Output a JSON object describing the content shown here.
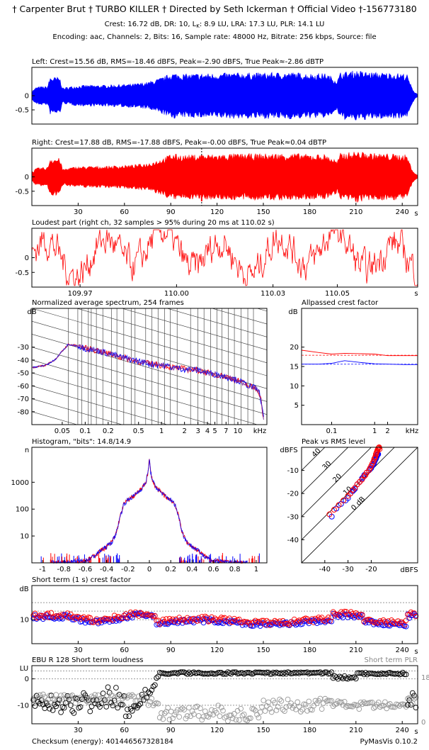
{
  "header": {
    "title": "† Carpenter Brut † TURBO KILLER † Directed by Seth Ickerman † Official Video †-156773180",
    "metrics": "Crest: 16.72 dB,  DR: 10,  L",
    "metrics_k": "K",
    "metrics_rest": ": 8.9 LU,  LRA: 17.3 LU,  PLR: 14.1 LU",
    "encoding": "Encoding: aac,  Channels: 2,  Bits: 16,  Sample rate: 48000 Hz,  Bitrate: 256 kbps,  Source: file"
  },
  "footer": {
    "checksum": "Checksum (energy): 401446567328184",
    "version": "PyMasVis 0.10.2"
  },
  "colors": {
    "left": "#0000ff",
    "right": "#ff0000",
    "spec_mix": "#7a2a9a",
    "grid": "#999999"
  },
  "chart_data": [
    {
      "id": "left",
      "type": "area",
      "title": "Left: Crest=15.56 dB, RMS=-18.46 dBFS, Peak=-2.90 dBFS, True Peak≈-2.86 dBTP",
      "xlim": [
        0,
        250
      ],
      "ylim": [
        -1,
        1
      ],
      "yticks": [
        "0",
        "-0.5"
      ],
      "ytick_values": [
        0,
        -0.5
      ],
      "envelope": {
        "x": [
          0,
          3,
          6,
          10,
          12,
          14,
          18,
          20,
          22,
          25,
          28,
          35,
          45,
          55,
          65,
          75,
          82,
          86,
          90,
          95,
          100,
          110,
          120,
          130,
          140,
          150,
          160,
          170,
          180,
          190,
          195,
          198,
          200,
          205,
          210,
          215,
          220,
          230,
          240,
          243,
          246,
          248,
          250
        ],
        "a": [
          0.15,
          0.28,
          0.3,
          0.3,
          0.62,
          0.6,
          0.6,
          0.25,
          0.27,
          0.3,
          0.32,
          0.34,
          0.34,
          0.36,
          0.38,
          0.44,
          0.55,
          0.62,
          0.74,
          0.72,
          0.7,
          0.72,
          0.72,
          0.74,
          0.74,
          0.74,
          0.75,
          0.75,
          0.72,
          0.72,
          0.6,
          0.5,
          0.76,
          0.78,
          0.82,
          0.78,
          0.76,
          0.74,
          0.72,
          0.7,
          0.3,
          0.12,
          0.05
        ]
      }
    },
    {
      "id": "right",
      "type": "area",
      "title": "Right: Crest=17.88 dB, RMS=-17.88 dBFS, Peak=-0.00 dBFS, True Peak≈0.04 dBTP",
      "xlim": [
        0,
        250
      ],
      "ylim": [
        -1,
        1
      ],
      "yticks": [
        "0",
        "-0.5"
      ],
      "ytick_values": [
        0,
        -0.5
      ],
      "xticks": [
        30,
        60,
        90,
        120,
        150,
        180,
        210,
        240
      ],
      "xunit": "s",
      "marker_x": 110.02,
      "envelope": {
        "x": [
          0,
          3,
          6,
          10,
          12,
          14,
          18,
          20,
          22,
          25,
          28,
          35,
          45,
          55,
          65,
          75,
          82,
          86,
          90,
          95,
          100,
          110,
          120,
          130,
          140,
          150,
          160,
          170,
          180,
          190,
          195,
          198,
          200,
          205,
          210,
          215,
          220,
          230,
          240,
          243,
          246,
          248,
          250
        ],
        "a": [
          0.15,
          0.28,
          0.3,
          0.3,
          0.62,
          0.6,
          0.6,
          0.25,
          0.27,
          0.3,
          0.32,
          0.34,
          0.34,
          0.36,
          0.38,
          0.44,
          0.55,
          0.62,
          0.74,
          0.72,
          0.7,
          0.72,
          0.72,
          0.74,
          0.74,
          0.74,
          0.75,
          0.75,
          0.72,
          0.72,
          0.6,
          0.5,
          0.76,
          0.78,
          0.82,
          0.78,
          0.76,
          0.74,
          0.72,
          0.7,
          0.3,
          0.12,
          0.05
        ]
      }
    },
    {
      "id": "loudest",
      "type": "line",
      "title": "Loudest part (right ch, 32 samples > 95% during 20 ms at 110.02 s)",
      "xlim": [
        109.955,
        110.075
      ],
      "ylim": [
        -1,
        1
      ],
      "yticks": [
        "0",
        "-0.5"
      ],
      "ytick_values": [
        0,
        -0.5
      ],
      "xticks": [
        "109.97",
        "110.00",
        "110.03",
        "110.05"
      ],
      "xtick_values": [
        109.97,
        110.0,
        110.03,
        110.05
      ],
      "xunit": "s"
    },
    {
      "id": "spectrum",
      "type": "line",
      "title": "Normalized average spectrum, 254 frames",
      "ylabel": "dB",
      "xunit": "kHz",
      "xlim": [
        0.02,
        24
      ],
      "ylim": [
        -90,
        0
      ],
      "yticks": [
        "-30",
        "-40",
        "-50",
        "-60",
        "-70",
        "-80"
      ],
      "ytick_values": [
        -30,
        -40,
        -50,
        -60,
        -70,
        -80
      ],
      "xticks": [
        "0.05",
        "0.1",
        "0.2",
        "0.5",
        "1",
        "2",
        "3",
        "4",
        "5",
        "7",
        "10"
      ],
      "xtick_values": [
        0.05,
        0.1,
        0.2,
        0.5,
        1,
        2,
        3,
        4,
        5,
        7,
        10
      ],
      "curve": {
        "f": [
          0.02,
          0.03,
          0.04,
          0.05,
          0.06,
          0.08,
          0.1,
          0.15,
          0.2,
          0.3,
          0.5,
          0.7,
          1,
          1.5,
          2,
          3,
          4,
          5,
          7,
          10,
          14,
          17,
          18,
          19,
          20,
          21,
          22
        ],
        "db": [
          -46,
          -44,
          -40,
          -33,
          -28,
          -29,
          -31,
          -33,
          -35,
          -38,
          -41,
          -43,
          -44,
          -46,
          -47,
          -48,
          -50,
          -51,
          -53,
          -56,
          -60,
          -62,
          -63,
          -65,
          -70,
          -80,
          -86
        ]
      }
    },
    {
      "id": "allpass",
      "type": "line",
      "title": "Allpassed crest factor",
      "ylabel": "dB",
      "xunit": "kHz",
      "xlim": [
        0.02,
        10
      ],
      "ylim": [
        0,
        30
      ],
      "yticks": [
        "20",
        "15",
        "10",
        "5"
      ],
      "ytick_values": [
        20,
        15,
        10,
        5
      ],
      "xticks": [
        "0.1",
        "1",
        "2"
      ],
      "xtick_values": [
        0.1,
        1,
        2
      ],
      "series": [
        {
          "channel": "right",
          "f": [
            0.02,
            0.05,
            0.1,
            0.2,
            0.5,
            1,
            2,
            5,
            10
          ],
          "values": [
            19.2,
            18.6,
            18.2,
            18.4,
            18.3,
            18.2,
            17.8,
            17.8,
            17.8
          ],
          "baseline": 17.9
        },
        {
          "channel": "left",
          "f": [
            0.02,
            0.05,
            0.1,
            0.2,
            0.5,
            1,
            2,
            5,
            10
          ],
          "values": [
            15.6,
            15.6,
            15.8,
            16.5,
            16.0,
            15.7,
            15.6,
            15.5,
            15.5
          ],
          "baseline": 15.6
        }
      ]
    },
    {
      "id": "histogram",
      "type": "line",
      "title": "Histogram, \"bits\": 14.8/14.9",
      "ylabel": "n",
      "log": true,
      "xlim": [
        -1.1,
        1.1
      ],
      "ylim": [
        1,
        20000
      ],
      "yticks": [
        "1000",
        "100",
        "10"
      ],
      "ytick_values": [
        1000,
        100,
        10
      ],
      "xticks": [
        "-1",
        "-0.8",
        "-0.6",
        "-0.4",
        "-0.2",
        "0",
        "0.2",
        "0.4",
        "0.6",
        "0.8",
        "1"
      ],
      "xtick_values": [
        -1,
        -0.8,
        -0.6,
        -0.4,
        -0.2,
        0,
        0.2,
        0.4,
        0.6,
        0.8,
        1
      ],
      "curve": {
        "x": [
          0,
          0.01,
          0.03,
          0.06,
          0.1,
          0.15,
          0.2,
          0.24,
          0.26,
          0.28,
          0.3,
          0.32,
          0.35,
          0.4,
          0.45,
          0.5,
          0.55,
          0.6,
          0.7,
          0.8,
          0.9
        ],
        "n": [
          7000,
          2500,
          1100,
          650,
          450,
          300,
          220,
          150,
          80,
          40,
          18,
          10,
          6,
          4,
          3,
          2,
          1.5,
          1.2,
          1.1,
          1,
          1
        ]
      }
    },
    {
      "id": "peak_rms",
      "type": "scatter",
      "title": "Peak vs RMS level",
      "ylabel": "dBFS",
      "xlabel": "dBFS",
      "xlim": [
        -50,
        0
      ],
      "ylim": [
        -50,
        0
      ],
      "xticks": [
        "-40",
        "-30",
        "-20"
      ],
      "xtick_values": [
        -40,
        -30,
        -20
      ],
      "yticks": [
        "-10",
        "-20",
        "-30",
        "-40"
      ],
      "ytick_values": [
        -10,
        -20,
        -30,
        -40
      ],
      "diagonals": [
        "40",
        "30",
        "20",
        "10",
        "0 dB"
      ],
      "left_rms": [
        -37,
        -35,
        -33,
        -31,
        -30,
        -29,
        -28,
        -27.5,
        -27,
        -26,
        -25,
        -24,
        -23.5,
        -23,
        -22,
        -21,
        -20.5,
        -20,
        -19.5,
        -19.2,
        -18.8,
        -18.5,
        -18.3,
        -18,
        -17.8,
        -17.6,
        -17.5,
        -17.4,
        -17.2,
        -17.1,
        -17
      ],
      "left_peak": [
        -30,
        -26.5,
        -24.5,
        -23,
        -22,
        -20,
        -19,
        -18.5,
        -18,
        -16,
        -15,
        -13.5,
        -13,
        -12,
        -11,
        -10,
        -9.5,
        -9,
        -8,
        -7.5,
        -7,
        -6,
        -5.5,
        -5,
        -4.5,
        -4,
        -3.5,
        -3.2,
        -3,
        -2.9,
        -3
      ],
      "right_rms": [
        -38,
        -36,
        -34,
        -32,
        -30,
        -29,
        -28,
        -27,
        -26,
        -25,
        -24,
        -23,
        -22.5,
        -22,
        -21,
        -20.5,
        -20,
        -19.5,
        -19,
        -18.7,
        -18.4,
        -18.2,
        -18,
        -17.8,
        -17.6,
        -17.4,
        -17.2,
        -17,
        -16.8,
        -16.6,
        -16.4
      ],
      "right_peak": [
        -29,
        -27,
        -25,
        -23,
        -21,
        -20,
        -18.5,
        -17.5,
        -16,
        -15,
        -14,
        -12.5,
        -12,
        -11,
        -10,
        -9,
        -8,
        -7,
        -6,
        -5,
        -4.5,
        -4,
        -3,
        -2.5,
        -2,
        -1.5,
        -1,
        -0.5,
        -0.2,
        0,
        -0.8
      ]
    },
    {
      "id": "crest_st",
      "type": "scatter",
      "title": "Short term (1 s) crest factor",
      "ylabel": "dB",
      "xlim": [
        0,
        250
      ],
      "ylim": [
        3,
        20
      ],
      "yticks": [
        "10"
      ],
      "ytick_values": [
        10
      ],
      "gridlines": [
        15,
        12.5,
        10
      ],
      "xticks": [
        30,
        60,
        90,
        120,
        150,
        180,
        210,
        240
      ],
      "xunit": "s"
    },
    {
      "id": "ebu",
      "type": "scatter",
      "title": "EBU R 128 Short term loudness",
      "subtitle": "Short term PLR",
      "ylabel": "LU",
      "xlim": [
        0,
        250
      ],
      "ylim": [
        -17,
        5
      ],
      "yticks": [
        "0",
        "-10"
      ],
      "ytick_values": [
        0,
        -10
      ],
      "right_ticks": [
        "18",
        "0"
      ],
      "xticks": [
        30,
        60,
        90,
        120,
        150,
        180,
        210,
        240
      ],
      "xunit": "s"
    }
  ]
}
